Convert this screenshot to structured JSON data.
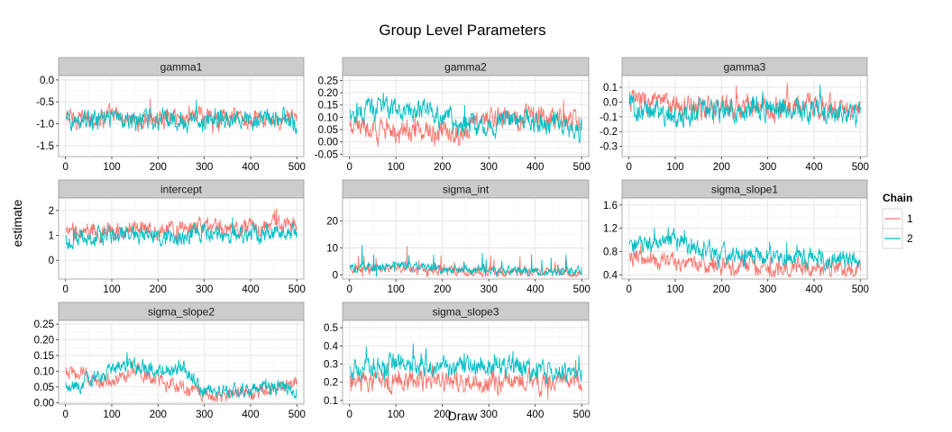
{
  "chart_data": {
    "type": "line",
    "title": "Group Level Parameters",
    "xlabel": "Draw",
    "ylabel": "estimate",
    "grid": true,
    "legend": {
      "title": "Chain",
      "placement": "right",
      "entries": [
        {
          "name": "1",
          "color": "#F8766D"
        },
        {
          "name": "2",
          "color": "#00BFC4"
        }
      ]
    },
    "xlim": [
      -15,
      515
    ],
    "xticks": [
      0,
      100,
      200,
      300,
      400,
      500
    ],
    "panels": [
      {
        "name": "gamma1",
        "ylim": [
          -1.75,
          0.1
        ],
        "yticks": [
          0.0,
          -0.5,
          -1.0,
          -1.5
        ],
        "ytick_labels": [
          "0.0",
          "-0.5",
          "-1.0",
          "-1.5"
        ],
        "series": [
          {
            "name": "1",
            "values": [
              -0.85,
              -0.9,
              -0.8,
              -0.92,
              -0.88,
              -0.85,
              -0.82,
              -0.9,
              -0.87,
              -0.85,
              -0.9
            ]
          },
          {
            "name": "2",
            "values": [
              -0.95,
              -0.92,
              -0.9,
              -0.95,
              -0.9,
              -0.93,
              -0.95,
              -0.9,
              -0.92,
              -0.9,
              -0.95
            ]
          }
        ]
      },
      {
        "name": "gamma2",
        "ylim": [
          -0.06,
          0.27
        ],
        "yticks": [
          0.25,
          0.2,
          0.15,
          0.1,
          0.05,
          0.0,
          -0.05
        ],
        "ytick_labels": [
          "0.25",
          "0.20",
          "0.15",
          "0.10",
          "0.05",
          "0.00",
          "-0.05"
        ],
        "series": [
          {
            "name": "1",
            "values": [
              0.05,
              0.06,
              0.04,
              0.05,
              0.03,
              0.06,
              0.09,
              0.1,
              0.11,
              0.09,
              0.08
            ]
          },
          {
            "name": "2",
            "values": [
              0.12,
              0.13,
              0.14,
              0.12,
              0.1,
              0.07,
              0.06,
              0.09,
              0.08,
              0.07,
              0.06
            ]
          }
        ]
      },
      {
        "name": "gamma3",
        "ylim": [
          -0.37,
          0.18
        ],
        "yticks": [
          0.1,
          0.0,
          -0.1,
          -0.2,
          -0.3
        ],
        "ytick_labels": [
          "0.1",
          "0.0",
          "-0.1",
          "-0.2",
          "-0.3"
        ],
        "series": [
          {
            "name": "1",
            "values": [
              0.02,
              0.0,
              -0.03,
              -0.02,
              -0.04,
              -0.03,
              -0.05,
              -0.03,
              -0.02,
              -0.05,
              -0.07
            ]
          },
          {
            "name": "2",
            "values": [
              -0.04,
              -0.07,
              -0.1,
              -0.05,
              -0.06,
              -0.04,
              -0.05,
              -0.05,
              -0.06,
              -0.07,
              -0.08
            ]
          }
        ]
      },
      {
        "name": "intercept",
        "ylim": [
          -0.75,
          2.5
        ],
        "yticks": [
          2,
          1,
          0
        ],
        "ytick_labels": [
          "2",
          "1",
          "0"
        ],
        "series": [
          {
            "name": "1",
            "values": [
              1.0,
              1.15,
              1.2,
              1.25,
              1.2,
              1.25,
              1.3,
              1.3,
              1.35,
              1.4,
              1.45
            ]
          },
          {
            "name": "2",
            "values": [
              0.85,
              0.9,
              0.95,
              1.0,
              0.95,
              1.0,
              1.05,
              1.1,
              1.05,
              1.15,
              1.1
            ]
          }
        ]
      },
      {
        "name": "sigma_int",
        "ylim": [
          -1.5,
          28.5
        ],
        "yticks": [
          20,
          10,
          0
        ],
        "ytick_labels": [
          "20",
          "10",
          "0"
        ],
        "series": [
          {
            "name": "1",
            "values": [
              2.5,
              2.2,
              2.8,
              2.0,
              1.8,
              1.5,
              1.2,
              1.0,
              1.1,
              1.0,
              0.9
            ]
          },
          {
            "name": "2",
            "values": [
              3.0,
              2.8,
              3.5,
              3.0,
              2.5,
              2.0,
              1.6,
              1.4,
              1.3,
              1.2,
              1.1
            ]
          }
        ]
      },
      {
        "name": "sigma_slope1",
        "ylim": [
          0.33,
          1.72
        ],
        "yticks": [
          1.6,
          1.2,
          0.8,
          0.4
        ],
        "ytick_labels": [
          "1.6",
          "1.2",
          "0.8",
          "0.4"
        ],
        "series": [
          {
            "name": "1",
            "values": [
              0.7,
              0.65,
              0.6,
              0.58,
              0.55,
              0.55,
              0.52,
              0.55,
              0.53,
              0.52,
              0.5
            ]
          },
          {
            "name": "2",
            "values": [
              0.85,
              0.95,
              1.0,
              0.85,
              0.75,
              0.72,
              0.7,
              0.72,
              0.68,
              0.65,
              0.62
            ]
          }
        ]
      },
      {
        "name": "sigma_slope2",
        "ylim": [
          -0.005,
          0.262
        ],
        "yticks": [
          0.25,
          0.2,
          0.15,
          0.1,
          0.05,
          0.0
        ],
        "ytick_labels": [
          "0.25",
          "0.20",
          "0.15",
          "0.10",
          "0.05",
          "0.00"
        ],
        "series": [
          {
            "name": "1",
            "values": [
              0.1,
              0.08,
              0.06,
              0.1,
              0.07,
              0.05,
              0.03,
              0.02,
              0.03,
              0.04,
              0.06
            ]
          },
          {
            "name": "2",
            "values": [
              0.05,
              0.07,
              0.1,
              0.12,
              0.1,
              0.12,
              0.04,
              0.03,
              0.04,
              0.05,
              0.04
            ]
          }
        ]
      },
      {
        "name": "sigma_slope3",
        "ylim": [
          0.08,
          0.54
        ],
        "yticks": [
          0.5,
          0.4,
          0.3,
          0.2,
          0.1
        ],
        "ytick_labels": [
          "0.5",
          "0.4",
          "0.3",
          "0.2",
          "0.1"
        ],
        "series": [
          {
            "name": "1",
            "values": [
              0.2,
              0.21,
              0.2,
              0.22,
              0.21,
              0.2,
              0.2,
              0.21,
              0.2,
              0.21,
              0.19
            ]
          },
          {
            "name": "2",
            "values": [
              0.25,
              0.28,
              0.3,
              0.3,
              0.28,
              0.29,
              0.3,
              0.28,
              0.27,
              0.26,
              0.24
            ]
          }
        ]
      }
    ]
  }
}
